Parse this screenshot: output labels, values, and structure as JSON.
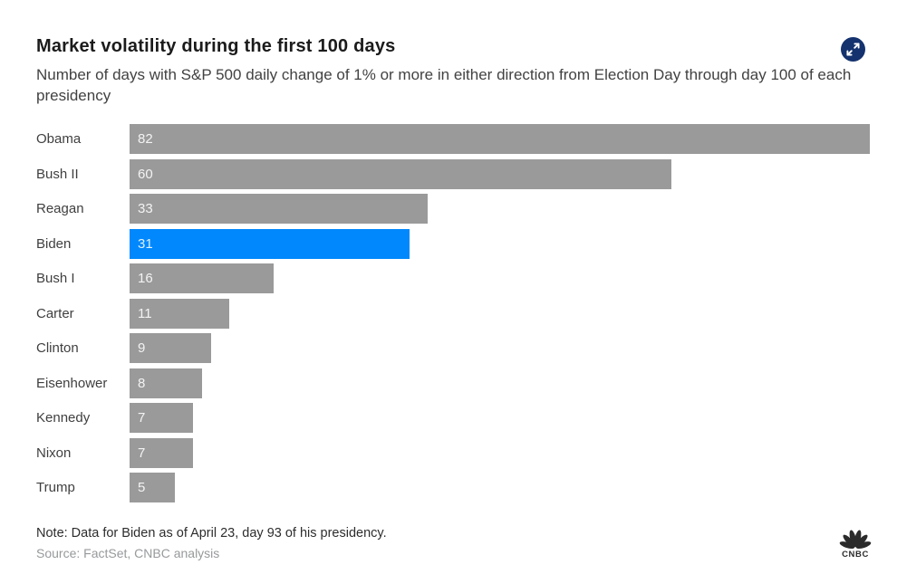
{
  "chart_data": {
    "type": "bar",
    "orientation": "horizontal",
    "title": "Market volatility during the first 100 days",
    "subtitle": "Number of days with S&P 500 daily change of 1% or more in either direction from Election Day through day 100 of each presidency",
    "categories": [
      "Obama",
      "Bush II",
      "Reagan",
      "Biden",
      "Bush I",
      "Carter",
      "Clinton",
      "Eisenhower",
      "Kennedy",
      "Nixon",
      "Trump"
    ],
    "values": [
      82,
      60,
      33,
      31,
      16,
      11,
      9,
      8,
      7,
      7,
      5
    ],
    "xlim": [
      0,
      82
    ],
    "grid": false,
    "legend": false,
    "value_labels_position": "inside-left",
    "highlighted_category": "Biden",
    "bar_color": "#9a9a9a",
    "highlight_color": "#0088fc"
  },
  "footer": {
    "note": "Note: Data for Biden as of April 23, day 93 of his presidency.",
    "source": "Source: FactSet, CNBC analysis"
  },
  "logo": {
    "text": "CNBC"
  },
  "icons": {
    "expand": "expand-arrows-icon",
    "logo": "cnbc-peacock-logo"
  },
  "colors": {
    "icon_navy": "#14326e",
    "logo_dark": "#2b2b2b",
    "background": "#ffffff",
    "title_text": "#1b1b1b",
    "body_text": "#424242",
    "source_text": "#97999b"
  }
}
